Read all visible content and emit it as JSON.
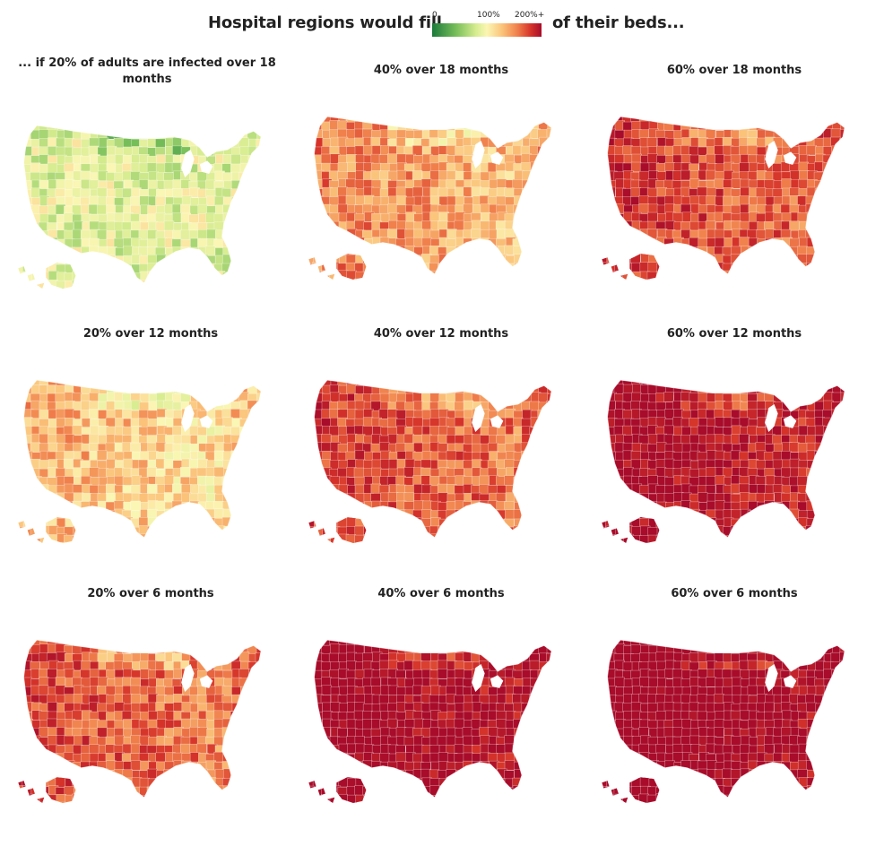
{
  "header": {
    "prefix": "Hospital regions would fill",
    "suffix": "of their beds...",
    "legend_ticks": [
      "0",
      "100%",
      "200%+"
    ]
  },
  "color_scale": {
    "stops": [
      "#1a7a3a",
      "#78bf5a",
      "#d6ec8f",
      "#fbf6b4",
      "#fbc37a",
      "#f07f4b",
      "#d6342a",
      "#a80c2a"
    ]
  },
  "panels": [
    {
      "title": "... if 20% of adults are infected over 18 months",
      "fill_level": 0.35
    },
    {
      "title": "40% over 18 months",
      "fill_level": 0.55
    },
    {
      "title": "60% over 18 months",
      "fill_level": 0.72
    },
    {
      "title": "20% over 12 months",
      "fill_level": 0.45
    },
    {
      "title": "40% over 12 months",
      "fill_level": 0.7
    },
    {
      "title": "60% over 12 months",
      "fill_level": 0.88
    },
    {
      "title": "20% over 6 months",
      "fill_level": 0.68
    },
    {
      "title": "40% over 6 months",
      "fill_level": 0.93
    },
    {
      "title": "60% over 6 months",
      "fill_level": 0.97
    }
  ]
}
